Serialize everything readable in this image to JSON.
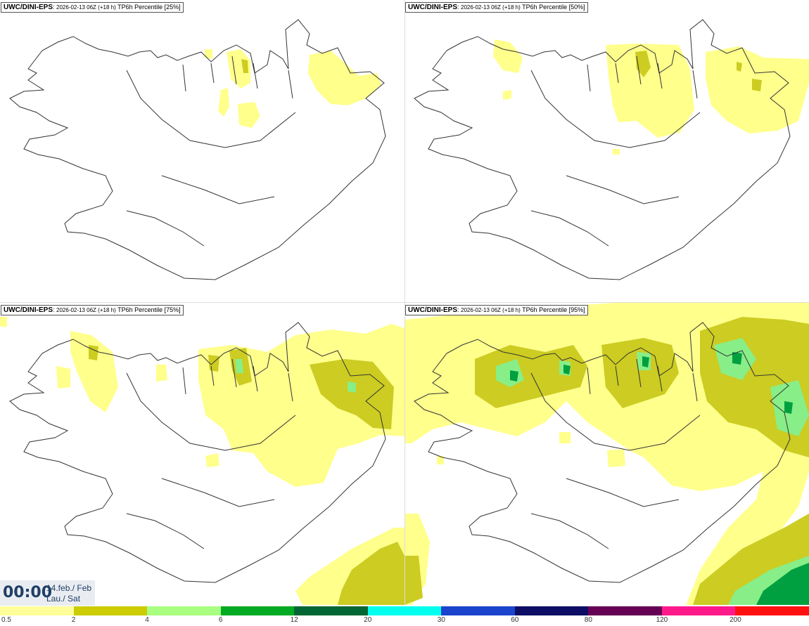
{
  "panels": [
    {
      "model": "UWC/DINI-EPS",
      "run": "2026-02-13 06Z (+18 h)",
      "field": "TP6h Percentile [25%]",
      "percentile": 25
    },
    {
      "model": "UWC/DINI-EPS",
      "run": "2026-02-13 06Z (+18 h)",
      "field": "TP6h Percentile [50%]",
      "percentile": 50
    },
    {
      "model": "UWC/DINI-EPS",
      "run": "2026-02-13 06Z (+18 h)",
      "field": "TP6h Percentile [75%]",
      "percentile": 75
    },
    {
      "model": "UWC/DINI-EPS",
      "run": "2026-02-13 06Z (+18 h)",
      "field": "TP6h Percentile [95%]",
      "percentile": 95
    }
  ],
  "valid_time": {
    "clock": "00:00",
    "date_line": "14.feb./ Feb",
    "day_line": "Lau./ Sat"
  },
  "legend": {
    "labels": [
      "0.5",
      "2",
      "4",
      "6",
      "12",
      "20",
      "30",
      "60",
      "80",
      "120",
      "200"
    ],
    "colors": [
      "#ffff99",
      "#cccc00",
      "#a8ff80",
      "#00aa22",
      "#006633",
      "#00ffee",
      "#1a44cc",
      "#0d0d66",
      "#660055",
      "#ff1a8c",
      "#ff1111"
    ]
  },
  "colors": {
    "coast": "#333333",
    "light_precip": "#ffff8c",
    "moderate_precip": "#cccc22",
    "heavy_precip": "#88ee88",
    "very_heavy_precip": "#00a040"
  }
}
